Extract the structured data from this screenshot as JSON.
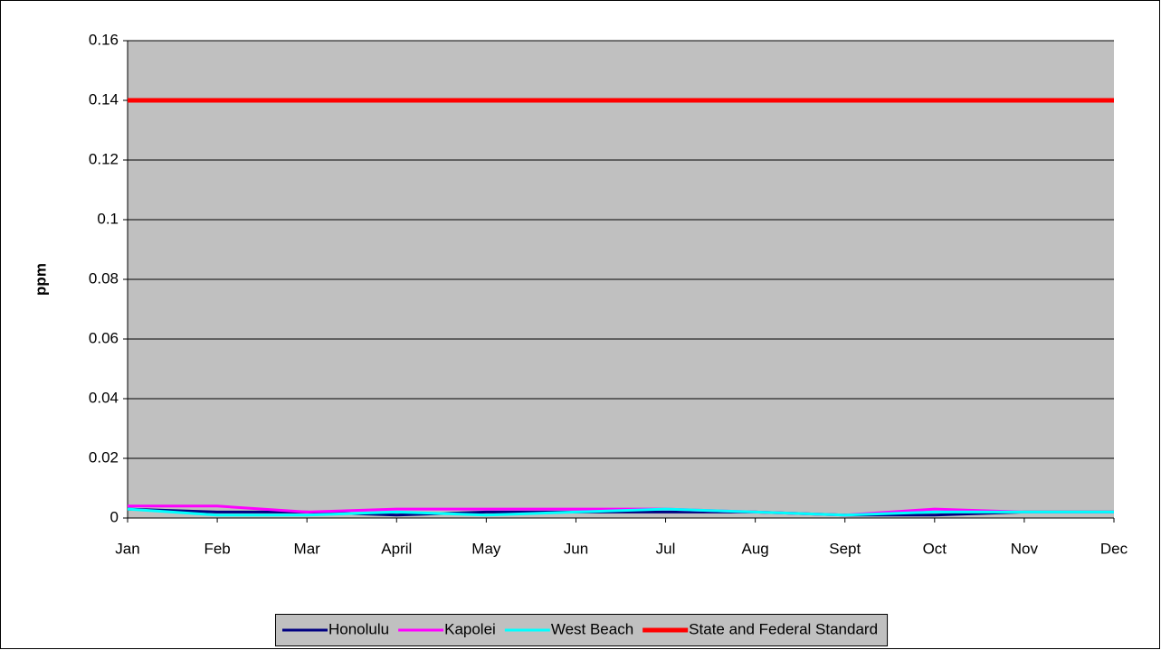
{
  "chart_data": {
    "type": "line",
    "y_label": "ppm",
    "categories": [
      "Jan",
      "Feb",
      "Mar",
      "April",
      "May",
      "Jun",
      "Jul",
      "Aug",
      "Sept",
      "Oct",
      "Nov",
      "Dec"
    ],
    "series": [
      {
        "name": "Honolulu",
        "color": "#000080",
        "values": [
          0.003,
          0.002,
          0.002,
          0.001,
          0.002,
          0.002,
          0.002,
          0.002,
          0.001,
          0.001,
          0.002,
          0.002
        ]
      },
      {
        "name": "Kapolei",
        "color": "#ff00ff",
        "values": [
          0.004,
          0.004,
          0.002,
          0.003,
          0.003,
          0.003,
          0.003,
          0.002,
          0.001,
          0.003,
          0.002,
          0.002
        ]
      },
      {
        "name": "West Beach",
        "color": "#00ffff",
        "values": [
          0.003,
          0.001,
          0.001,
          0.002,
          0.001,
          0.002,
          0.003,
          0.002,
          0.001,
          0.002,
          0.002,
          0.002
        ]
      },
      {
        "name": "State and Federal Standard",
        "color": "#ff0000",
        "values": [
          0.14,
          0.14,
          0.14,
          0.14,
          0.14,
          0.14,
          0.14,
          0.14,
          0.14,
          0.14,
          0.14,
          0.14
        ]
      }
    ],
    "ylim": [
      0,
      0.16
    ],
    "yticks": [
      0,
      0.02,
      0.04,
      0.06,
      0.08,
      0.1,
      0.12,
      0.14,
      0.16
    ],
    "grid": true,
    "plot_background": "#c0c0c0",
    "legend": "bottom"
  }
}
